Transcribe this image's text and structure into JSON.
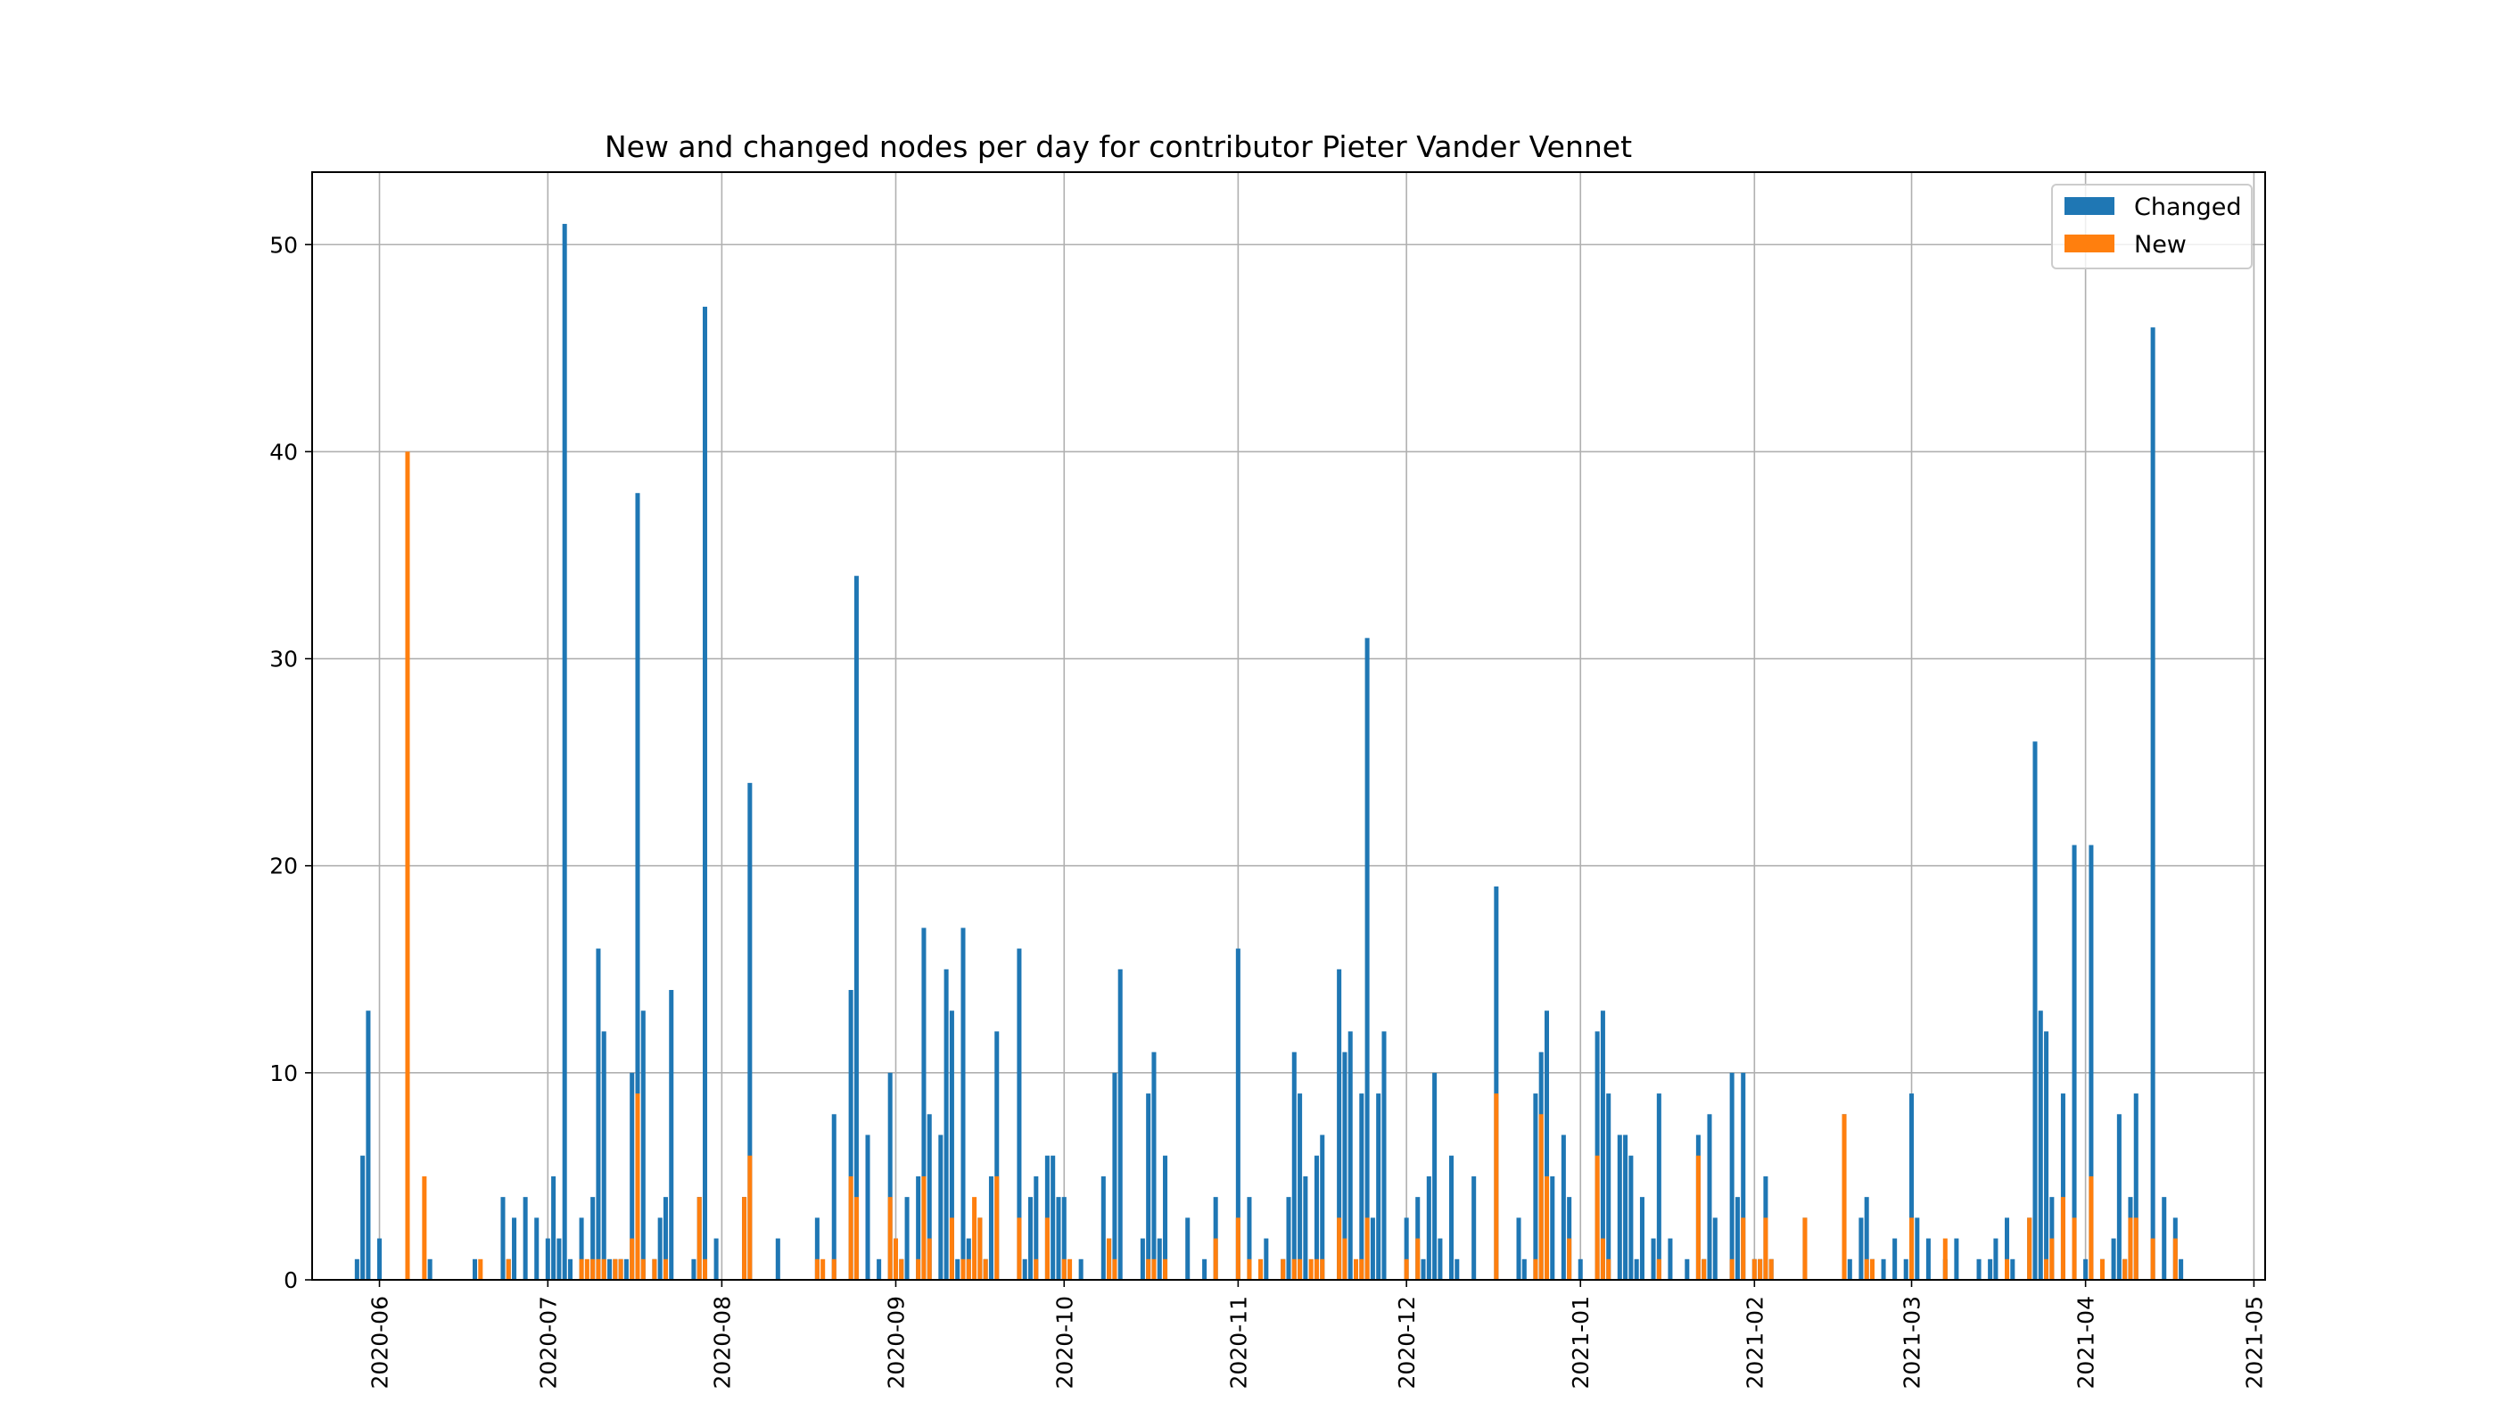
{
  "chart_data": {
    "type": "bar",
    "title": "New and changed nodes per day for contributor Pieter Vander Vennet",
    "xlabel": "",
    "ylabel": "",
    "x_range": [
      "2020-05-20",
      "2021-05-03"
    ],
    "ylim": [
      0,
      53.5
    ],
    "y_ticks": [
      0,
      10,
      20,
      30,
      40,
      50
    ],
    "x_ticks": [
      "2020-06",
      "2020-07",
      "2020-08",
      "2020-09",
      "2020-10",
      "2020-11",
      "2020-12",
      "2021-01",
      "2021-02",
      "2021-03",
      "2021-04",
      "2021-05"
    ],
    "grid": true,
    "legend_position": "top-right",
    "series": [
      {
        "name": "Changed",
        "color": "#1f77b4",
        "points": [
          [
            "2020-05-28",
            1
          ],
          [
            "2020-05-29",
            6
          ],
          [
            "2020-05-30",
            13
          ],
          [
            "2020-06-01",
            2
          ],
          [
            "2020-06-10",
            1
          ],
          [
            "2020-06-18",
            1
          ],
          [
            "2020-06-23",
            4
          ],
          [
            "2020-06-24",
            1
          ],
          [
            "2020-06-25",
            3
          ],
          [
            "2020-06-27",
            4
          ],
          [
            "2020-06-29",
            3
          ],
          [
            "2020-07-01",
            2
          ],
          [
            "2020-07-02",
            5
          ],
          [
            "2020-07-03",
            2
          ],
          [
            "2020-07-04",
            51
          ],
          [
            "2020-07-05",
            1
          ],
          [
            "2020-07-07",
            3
          ],
          [
            "2020-07-09",
            4
          ],
          [
            "2020-07-10",
            16
          ],
          [
            "2020-07-11",
            12
          ],
          [
            "2020-07-12",
            1
          ],
          [
            "2020-07-13",
            1
          ],
          [
            "2020-07-14",
            1
          ],
          [
            "2020-07-15",
            1
          ],
          [
            "2020-07-16",
            10
          ],
          [
            "2020-07-17",
            38
          ],
          [
            "2020-07-18",
            13
          ],
          [
            "2020-07-20",
            1
          ],
          [
            "2020-07-21",
            3
          ],
          [
            "2020-07-22",
            4
          ],
          [
            "2020-07-23",
            14
          ],
          [
            "2020-07-27",
            1
          ],
          [
            "2020-07-28",
            4
          ],
          [
            "2020-07-29",
            47
          ],
          [
            "2020-07-31",
            2
          ],
          [
            "2020-08-05",
            4
          ],
          [
            "2020-08-06",
            24
          ],
          [
            "2020-08-11",
            2
          ],
          [
            "2020-08-18",
            3
          ],
          [
            "2020-08-21",
            8
          ],
          [
            "2020-08-24",
            14
          ],
          [
            "2020-08-25",
            34
          ],
          [
            "2020-08-27",
            7
          ],
          [
            "2020-08-29",
            1
          ],
          [
            "2020-08-31",
            10
          ],
          [
            "2020-09-01",
            2
          ],
          [
            "2020-09-02",
            1
          ],
          [
            "2020-09-03",
            4
          ],
          [
            "2020-09-05",
            5
          ],
          [
            "2020-09-06",
            17
          ],
          [
            "2020-09-07",
            8
          ],
          [
            "2020-09-09",
            7
          ],
          [
            "2020-09-10",
            15
          ],
          [
            "2020-09-11",
            13
          ],
          [
            "2020-09-12",
            1
          ],
          [
            "2020-09-13",
            17
          ],
          [
            "2020-09-14",
            2
          ],
          [
            "2020-09-16",
            3
          ],
          [
            "2020-09-17",
            1
          ],
          [
            "2020-09-18",
            5
          ],
          [
            "2020-09-19",
            12
          ],
          [
            "2020-09-23",
            16
          ],
          [
            "2020-09-24",
            1
          ],
          [
            "2020-09-25",
            4
          ],
          [
            "2020-09-26",
            5
          ],
          [
            "2020-09-28",
            6
          ],
          [
            "2020-09-29",
            6
          ],
          [
            "2020-09-30",
            4
          ],
          [
            "2020-10-01",
            4
          ],
          [
            "2020-10-04",
            1
          ],
          [
            "2020-10-08",
            5
          ],
          [
            "2020-10-09",
            2
          ],
          [
            "2020-10-10",
            10
          ],
          [
            "2020-10-11",
            15
          ],
          [
            "2020-10-15",
            2
          ],
          [
            "2020-10-16",
            9
          ],
          [
            "2020-10-17",
            11
          ],
          [
            "2020-10-18",
            2
          ],
          [
            "2020-10-19",
            6
          ],
          [
            "2020-10-23",
            3
          ],
          [
            "2020-10-26",
            1
          ],
          [
            "2020-10-28",
            4
          ],
          [
            "2020-11-01",
            16
          ],
          [
            "2020-11-03",
            4
          ],
          [
            "2020-11-06",
            2
          ],
          [
            "2020-11-09",
            1
          ],
          [
            "2020-11-10",
            4
          ],
          [
            "2020-11-11",
            11
          ],
          [
            "2020-11-12",
            9
          ],
          [
            "2020-11-13",
            5
          ],
          [
            "2020-11-15",
            6
          ],
          [
            "2020-11-16",
            7
          ],
          [
            "2020-11-19",
            15
          ],
          [
            "2020-11-20",
            11
          ],
          [
            "2020-11-21",
            12
          ],
          [
            "2020-11-23",
            9
          ],
          [
            "2020-11-24",
            31
          ],
          [
            "2020-11-25",
            3
          ],
          [
            "2020-11-26",
            9
          ],
          [
            "2020-11-27",
            12
          ],
          [
            "2020-12-01",
            3
          ],
          [
            "2020-12-03",
            4
          ],
          [
            "2020-12-04",
            1
          ],
          [
            "2020-12-05",
            5
          ],
          [
            "2020-12-06",
            10
          ],
          [
            "2020-12-07",
            2
          ],
          [
            "2020-12-09",
            6
          ],
          [
            "2020-12-10",
            1
          ],
          [
            "2020-12-13",
            5
          ],
          [
            "2020-12-17",
            19
          ],
          [
            "2020-12-21",
            3
          ],
          [
            "2020-12-22",
            1
          ],
          [
            "2020-12-24",
            9
          ],
          [
            "2020-12-25",
            11
          ],
          [
            "2020-12-26",
            13
          ],
          [
            "2020-12-27",
            5
          ],
          [
            "2020-12-29",
            7
          ],
          [
            "2020-12-30",
            4
          ],
          [
            "2021-01-01",
            1
          ],
          [
            "2021-01-04",
            12
          ],
          [
            "2021-01-05",
            13
          ],
          [
            "2021-01-06",
            9
          ],
          [
            "2021-01-08",
            7
          ],
          [
            "2021-01-09",
            7
          ],
          [
            "2021-01-10",
            6
          ],
          [
            "2021-01-11",
            1
          ],
          [
            "2021-01-12",
            4
          ],
          [
            "2021-01-14",
            2
          ],
          [
            "2021-01-15",
            9
          ],
          [
            "2021-01-17",
            2
          ],
          [
            "2021-01-20",
            1
          ],
          [
            "2021-01-22",
            7
          ],
          [
            "2021-01-23",
            1
          ],
          [
            "2021-01-24",
            8
          ],
          [
            "2021-01-25",
            3
          ],
          [
            "2021-01-28",
            10
          ],
          [
            "2021-01-29",
            4
          ],
          [
            "2021-01-30",
            10
          ],
          [
            "2021-02-01",
            1
          ],
          [
            "2021-02-02",
            1
          ],
          [
            "2021-02-03",
            5
          ],
          [
            "2021-02-04",
            1
          ],
          [
            "2021-02-10",
            3
          ],
          [
            "2021-02-17",
            8
          ],
          [
            "2021-02-18",
            1
          ],
          [
            "2021-02-20",
            3
          ],
          [
            "2021-02-21",
            4
          ],
          [
            "2021-02-22",
            1
          ],
          [
            "2021-02-24",
            1
          ],
          [
            "2021-02-26",
            2
          ],
          [
            "2021-02-28",
            1
          ],
          [
            "2021-03-01",
            9
          ],
          [
            "2021-03-02",
            3
          ],
          [
            "2021-03-04",
            2
          ],
          [
            "2021-03-07",
            1
          ],
          [
            "2021-03-09",
            2
          ],
          [
            "2021-03-13",
            1
          ],
          [
            "2021-03-15",
            1
          ],
          [
            "2021-03-16",
            2
          ],
          [
            "2021-03-18",
            3
          ],
          [
            "2021-03-19",
            1
          ],
          [
            "2021-03-22",
            3
          ],
          [
            "2021-03-23",
            26
          ],
          [
            "2021-03-24",
            13
          ],
          [
            "2021-03-25",
            12
          ],
          [
            "2021-03-26",
            4
          ],
          [
            "2021-03-28",
            9
          ],
          [
            "2021-03-30",
            21
          ],
          [
            "2021-04-01",
            1
          ],
          [
            "2021-04-02",
            21
          ],
          [
            "2021-04-04",
            1
          ],
          [
            "2021-04-06",
            2
          ],
          [
            "2021-04-07",
            8
          ],
          [
            "2021-04-08",
            1
          ],
          [
            "2021-04-09",
            4
          ],
          [
            "2021-04-10",
            9
          ],
          [
            "2021-04-13",
            46
          ],
          [
            "2021-04-15",
            4
          ],
          [
            "2021-04-17",
            3
          ],
          [
            "2021-04-18",
            1
          ]
        ]
      },
      {
        "name": "New",
        "color": "#ff7f0e",
        "points": [
          [
            "2020-06-06",
            40
          ],
          [
            "2020-06-09",
            5
          ],
          [
            "2020-06-19",
            1
          ],
          [
            "2020-06-24",
            1
          ],
          [
            "2020-07-07",
            1
          ],
          [
            "2020-07-08",
            1
          ],
          [
            "2020-07-09",
            1
          ],
          [
            "2020-07-10",
            1
          ],
          [
            "2020-07-11",
            1
          ],
          [
            "2020-07-13",
            1
          ],
          [
            "2020-07-14",
            1
          ],
          [
            "2020-07-16",
            2
          ],
          [
            "2020-07-17",
            9
          ],
          [
            "2020-07-18",
            1
          ],
          [
            "2020-07-20",
            1
          ],
          [
            "2020-07-22",
            1
          ],
          [
            "2020-07-28",
            4
          ],
          [
            "2020-07-29",
            1
          ],
          [
            "2020-08-05",
            4
          ],
          [
            "2020-08-06",
            6
          ],
          [
            "2020-08-18",
            1
          ],
          [
            "2020-08-19",
            1
          ],
          [
            "2020-08-21",
            1
          ],
          [
            "2020-08-24",
            5
          ],
          [
            "2020-08-25",
            4
          ],
          [
            "2020-08-31",
            4
          ],
          [
            "2020-09-01",
            2
          ],
          [
            "2020-09-02",
            1
          ],
          [
            "2020-09-05",
            1
          ],
          [
            "2020-09-06",
            5
          ],
          [
            "2020-09-07",
            2
          ],
          [
            "2020-09-11",
            3
          ],
          [
            "2020-09-13",
            1
          ],
          [
            "2020-09-14",
            1
          ],
          [
            "2020-09-15",
            4
          ],
          [
            "2020-09-16",
            3
          ],
          [
            "2020-09-17",
            1
          ],
          [
            "2020-09-19",
            5
          ],
          [
            "2020-09-23",
            3
          ],
          [
            "2020-09-26",
            1
          ],
          [
            "2020-09-28",
            3
          ],
          [
            "2020-10-01",
            1
          ],
          [
            "2020-10-02",
            1
          ],
          [
            "2020-10-09",
            2
          ],
          [
            "2020-10-10",
            1
          ],
          [
            "2020-10-16",
            1
          ],
          [
            "2020-10-17",
            1
          ],
          [
            "2020-10-19",
            1
          ],
          [
            "2020-10-28",
            2
          ],
          [
            "2020-11-01",
            3
          ],
          [
            "2020-11-03",
            1
          ],
          [
            "2020-11-05",
            1
          ],
          [
            "2020-11-09",
            1
          ],
          [
            "2020-11-11",
            1
          ],
          [
            "2020-11-12",
            1
          ],
          [
            "2020-11-14",
            1
          ],
          [
            "2020-11-15",
            1
          ],
          [
            "2020-11-16",
            1
          ],
          [
            "2020-11-19",
            3
          ],
          [
            "2020-11-20",
            2
          ],
          [
            "2020-11-22",
            1
          ],
          [
            "2020-11-23",
            1
          ],
          [
            "2020-11-24",
            3
          ],
          [
            "2020-12-01",
            1
          ],
          [
            "2020-12-03",
            2
          ],
          [
            "2020-12-17",
            9
          ],
          [
            "2020-12-24",
            1
          ],
          [
            "2020-12-25",
            8
          ],
          [
            "2020-12-26",
            5
          ],
          [
            "2020-12-30",
            2
          ],
          [
            "2021-01-04",
            6
          ],
          [
            "2021-01-05",
            2
          ],
          [
            "2021-01-06",
            1
          ],
          [
            "2021-01-15",
            1
          ],
          [
            "2021-01-22",
            6
          ],
          [
            "2021-01-23",
            1
          ],
          [
            "2021-01-28",
            1
          ],
          [
            "2021-01-30",
            3
          ],
          [
            "2021-02-01",
            1
          ],
          [
            "2021-02-02",
            1
          ],
          [
            "2021-02-03",
            3
          ],
          [
            "2021-02-04",
            1
          ],
          [
            "2021-02-10",
            3
          ],
          [
            "2021-02-17",
            8
          ],
          [
            "2021-02-21",
            1
          ],
          [
            "2021-02-22",
            1
          ],
          [
            "2021-03-01",
            3
          ],
          [
            "2021-03-07",
            2
          ],
          [
            "2021-03-18",
            1
          ],
          [
            "2021-03-22",
            3
          ],
          [
            "2021-03-25",
            1
          ],
          [
            "2021-03-26",
            2
          ],
          [
            "2021-03-28",
            4
          ],
          [
            "2021-03-30",
            3
          ],
          [
            "2021-04-02",
            5
          ],
          [
            "2021-04-04",
            1
          ],
          [
            "2021-04-08",
            1
          ],
          [
            "2021-04-09",
            3
          ],
          [
            "2021-04-10",
            3
          ],
          [
            "2021-04-13",
            2
          ],
          [
            "2021-04-17",
            2
          ]
        ]
      }
    ]
  }
}
